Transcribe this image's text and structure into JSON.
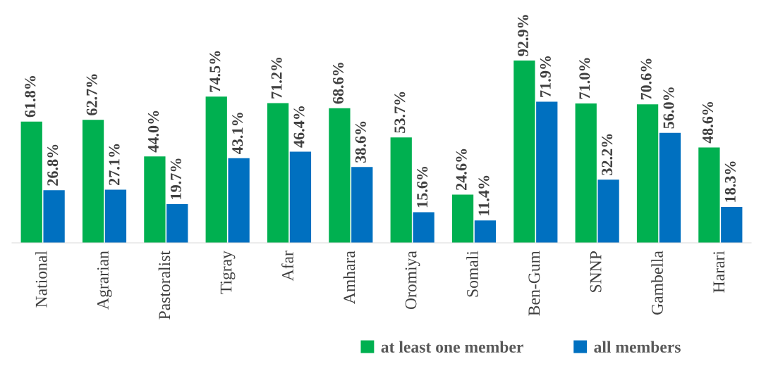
{
  "chart_data": {
    "type": "bar",
    "categories": [
      "National",
      "Agrarian",
      "Pastoralist",
      "Tigray",
      "Afar",
      "Amhara",
      "Oromiya",
      "Somali",
      "Ben-Gum",
      "SNNP",
      "Gambella",
      "Harari"
    ],
    "series": [
      {
        "name": "at least one member",
        "color": "#00b050",
        "values": [
          61.8,
          62.7,
          44.0,
          74.5,
          71.2,
          68.6,
          53.7,
          24.6,
          92.9,
          71.0,
          70.6,
          48.6
        ],
        "value_labels": [
          "61.8%",
          "62.7%",
          "44.0%",
          "74.5%",
          "71.2%",
          "68.6%",
          "53.7%",
          "24.6%",
          "92.9%",
          "71.0%",
          "70.6%",
          "48.6%"
        ]
      },
      {
        "name": "all members",
        "color": "#0070c0",
        "values": [
          26.8,
          27.1,
          19.7,
          43.1,
          46.4,
          38.6,
          15.6,
          11.4,
          71.9,
          32.2,
          56.0,
          18.3
        ],
        "value_labels": [
          "26.8%",
          "27.1%",
          "19.7%",
          "43.1%",
          "46.4%",
          "38.6%",
          "15.6%",
          "11.4%",
          "71.9%",
          "32.2%",
          "56.0%",
          "18.3%"
        ]
      }
    ],
    "tick_labels": "x",
    "legend": "bottom"
  }
}
